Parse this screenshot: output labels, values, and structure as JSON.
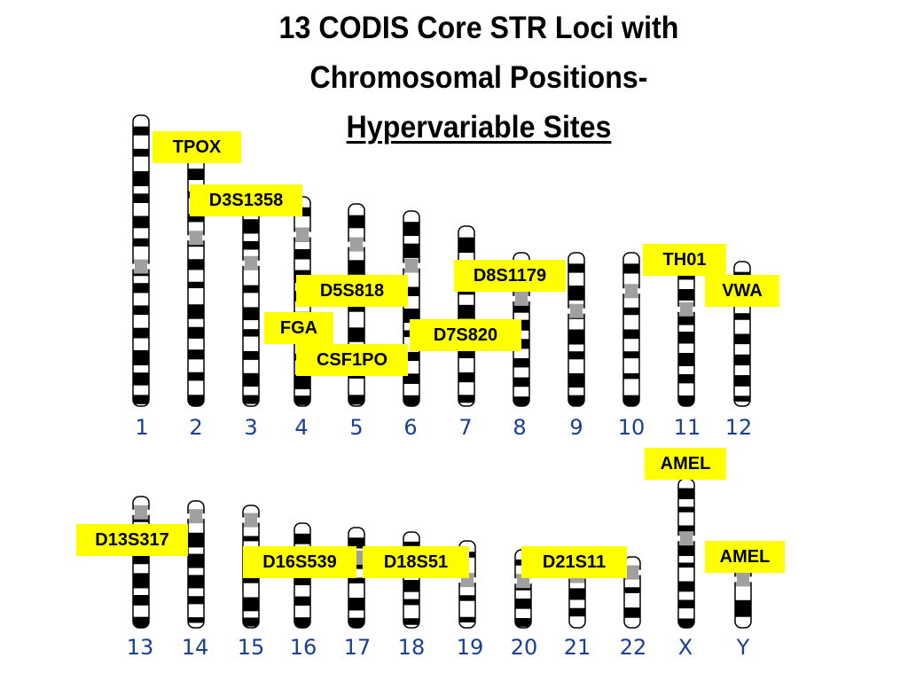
{
  "title": {
    "line1": "13 CODIS Core STR Loci with",
    "line2": "Chromosomal Positions-",
    "line3": "Hypervariable Sites"
  },
  "chromosomes": [
    "1",
    "2",
    "3",
    "4",
    "5",
    "6",
    "7",
    "8",
    "9",
    "10",
    "11",
    "12",
    "13",
    "14",
    "15",
    "16",
    "17",
    "18",
    "19",
    "20",
    "21",
    "22",
    "X",
    "Y"
  ],
  "loci": {
    "tpox": "TPOX",
    "d3s1358": "D3S1358",
    "d5s818": "D5S818",
    "fga": "FGA",
    "csf1po": "CSF1PO",
    "d7s820": "D7S820",
    "d8s1179": "D8S1179",
    "th01": "TH01",
    "vwa": "VWA",
    "amel_x": "AMEL",
    "amel_y": "AMEL",
    "d13s317": "D13S317",
    "d16s539": "D16S539",
    "d18s51": "D18S51",
    "d21s11": "D21S11"
  },
  "colors": {
    "label_background": "#ffff00",
    "chromosome_number": "#1a3f8f",
    "band_dark": "#000000",
    "band_light": "#ffffff",
    "centromere": "#a0a0a0"
  }
}
